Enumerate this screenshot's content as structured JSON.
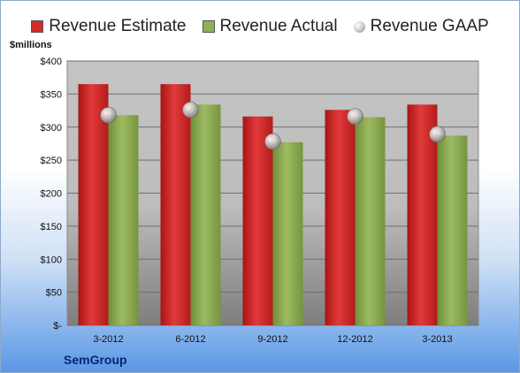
{
  "chart_data": {
    "type": "bar",
    "categories": [
      "3-2012",
      "6-2012",
      "9-2012",
      "12-2012",
      "3-2013"
    ],
    "series": [
      {
        "name": "Revenue Estimate",
        "values": [
          365,
          365,
          316,
          326,
          334
        ],
        "color": "#d42b2b"
      },
      {
        "name": "Revenue Actual",
        "values": [
          318,
          334,
          277,
          315,
          287
        ],
        "color": "#8fb055"
      },
      {
        "name": "Revenue GAAP",
        "values": [
          318,
          326,
          278,
          316,
          289
        ],
        "color": "#b0b0b0",
        "marker": "sphere"
      }
    ],
    "ylabel": "$millions",
    "ylim": [
      0,
      400
    ],
    "yticks": [
      0,
      50,
      100,
      150,
      200,
      250,
      300,
      350,
      400
    ],
    "ytick_labels": [
      "$-",
      "$50",
      "$100",
      "$150",
      "$200",
      "$250",
      "$300",
      "$350",
      "$400"
    ],
    "legend_position": "top",
    "grid": true
  },
  "company": "SemGroup"
}
